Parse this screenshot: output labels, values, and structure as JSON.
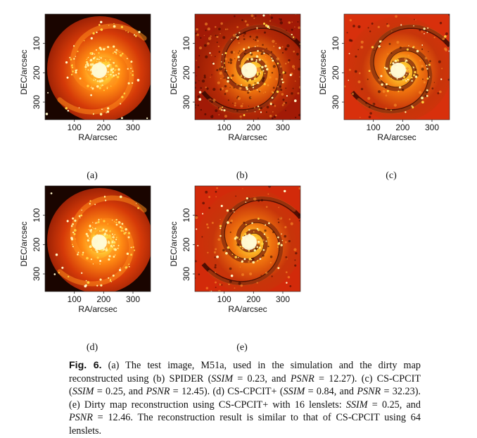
{
  "panels": [
    {
      "id": "a",
      "label": "(a)",
      "variant": "true"
    },
    {
      "id": "b",
      "label": "(b)",
      "variant": "spider"
    },
    {
      "id": "c",
      "label": "(c)",
      "variant": "cpcit"
    },
    {
      "id": "d",
      "label": "(d)",
      "variant": "true"
    },
    {
      "id": "e",
      "label": "(e)",
      "variant": "dirty"
    }
  ],
  "axes": {
    "xlabel": "RA/arcsec",
    "ylabel": "DEC/arcsec",
    "xticks": [
      "100",
      "200",
      "300"
    ],
    "yticks": [
      "100",
      "200",
      "300"
    ]
  },
  "caption": {
    "fig_label": "Fig. 6.",
    "p1": " (a) The test image, M51a, used in the simulation and the dirty map reconstructed using (b) SPIDER (",
    "ssim1": "SSIM",
    "p2": " = 0.23, and ",
    "psnr1": "PSNR",
    "p3": " = 12.27).  (c) CS-CPCIT (",
    "ssim2": "SSIM",
    "p4": " = 0.25, and ",
    "psnr2": "PSNR",
    "p5": " = 12.45).  (d) CS-CPCIT+ (",
    "ssim3": "SSIM",
    "p6": " = 0.84, and ",
    "psnr3": "PSNR",
    "p7": " = 32.23).  (e) Dirty map reconstruction using CS-CPCIT+ with 16 lenslets: ",
    "ssim4": "SSIM",
    "p8": " = 0.25, and ",
    "psnr4": "PSNR",
    "p9": " = 12.46. The reconstruction result is similar to that of CS-CPCIT using 64 lenslets."
  }
}
